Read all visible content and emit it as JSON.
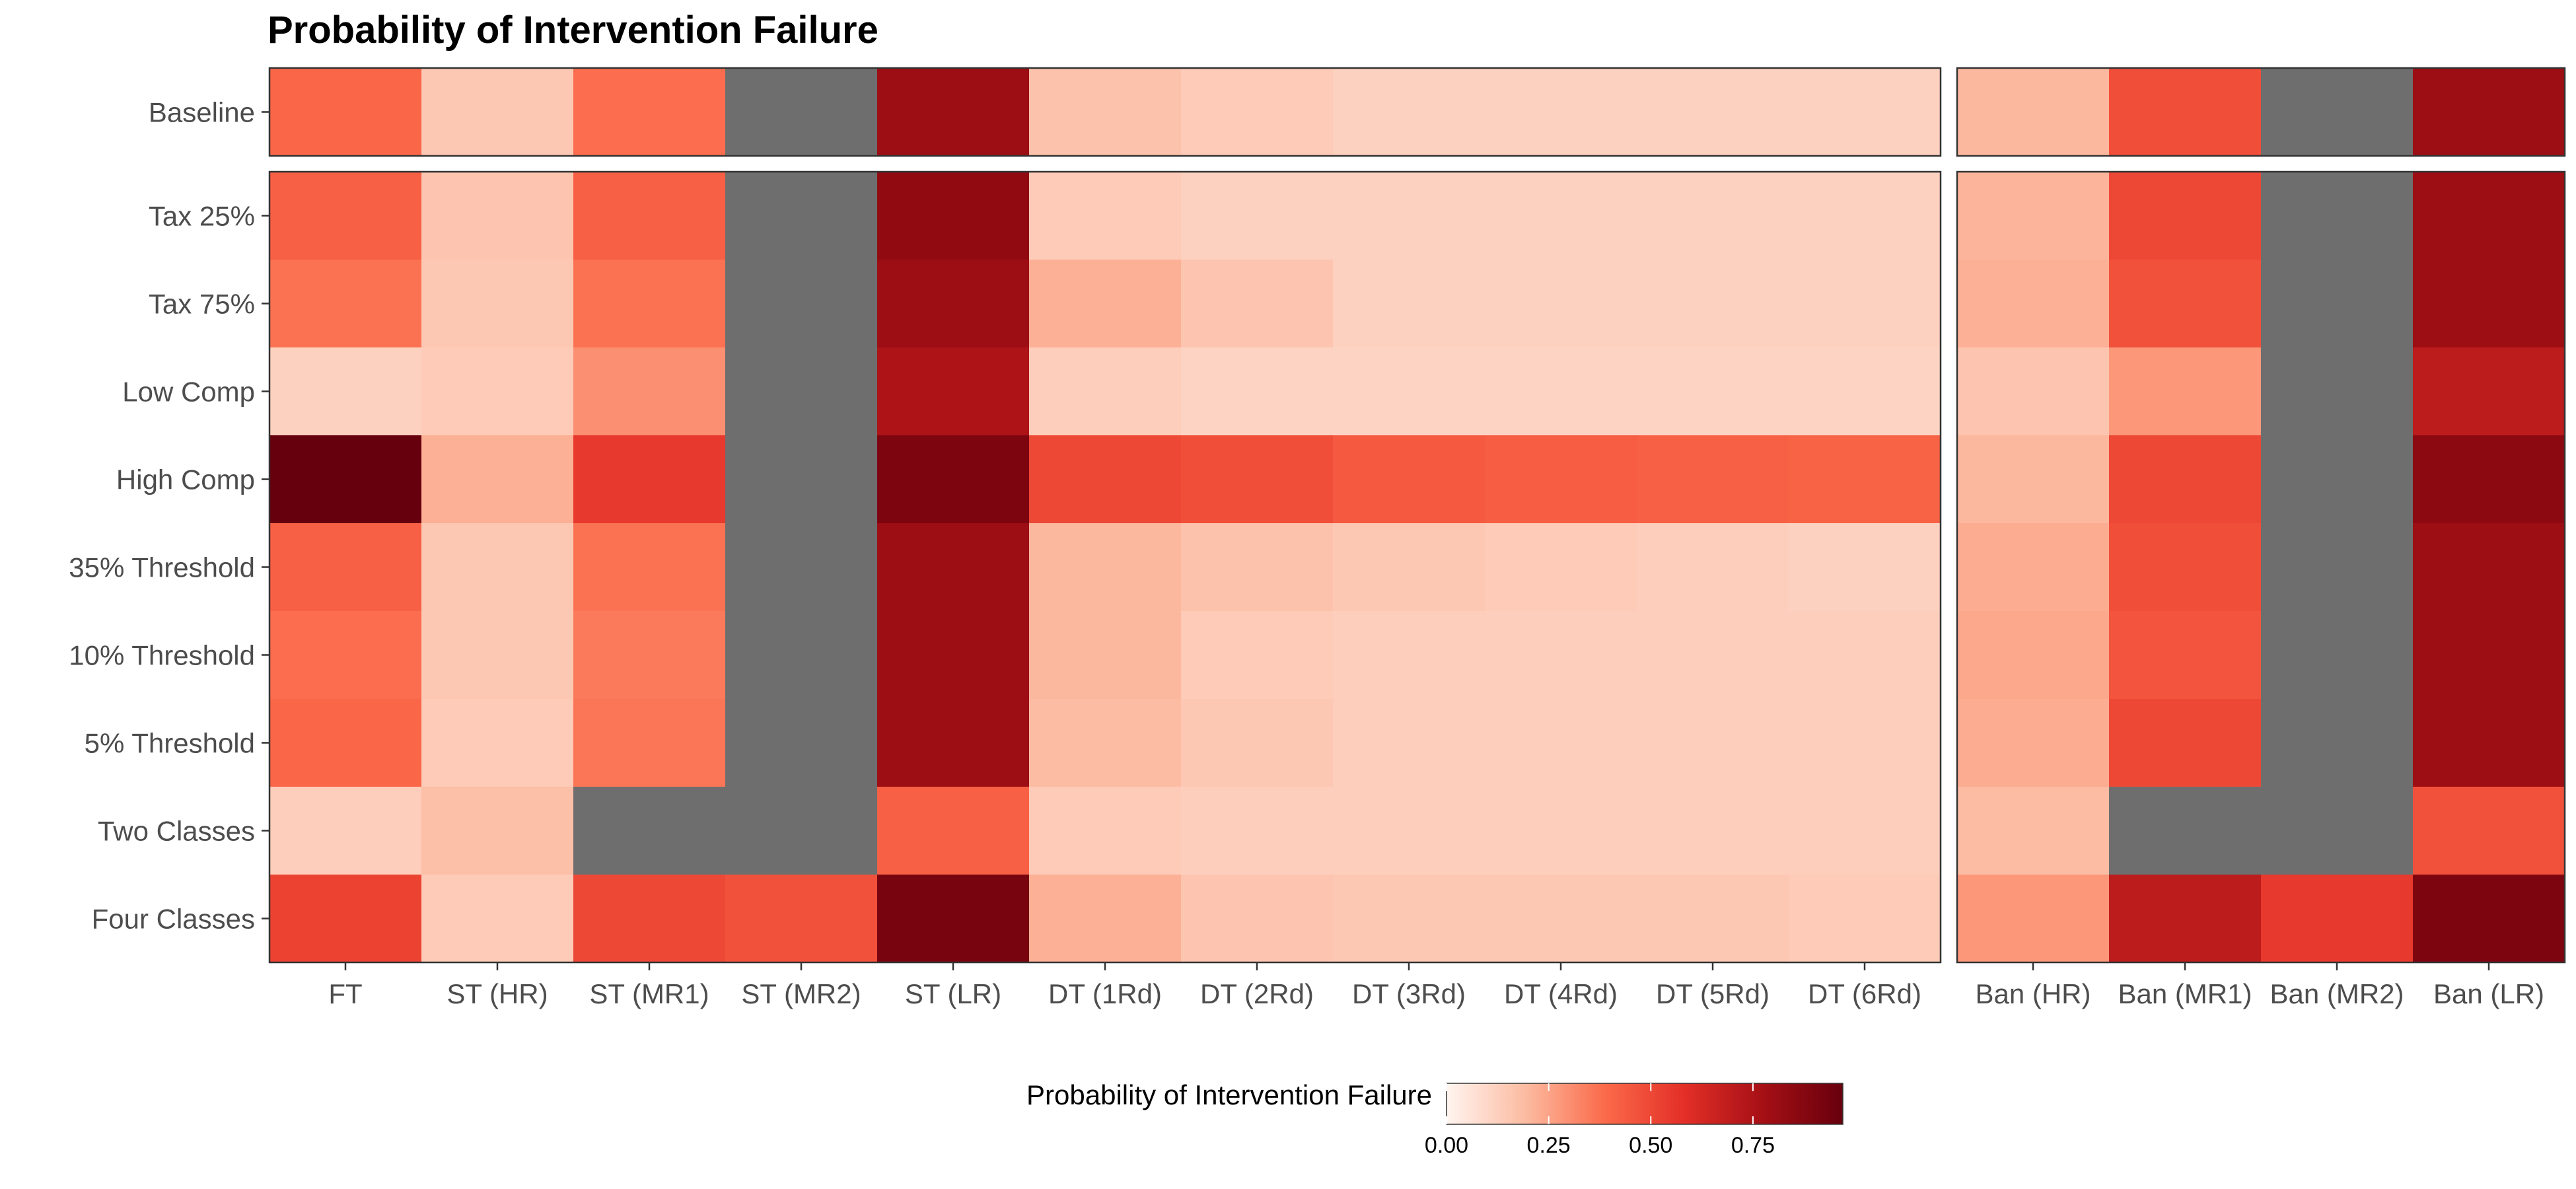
{
  "chart_data": {
    "type": "heatmap",
    "title": "Probability of Intervention Failure",
    "legend": {
      "title": "Probability of Intervention Failure",
      "position": "bottom",
      "ticks": [
        "0.00",
        "0.25",
        "0.50",
        "0.75"
      ],
      "range": [
        0,
        0.97
      ],
      "colors": [
        "#fff5f0",
        "#fcbba1",
        "#fb6a4a",
        "#e32f27",
        "#a50f15",
        "#67000d"
      ],
      "na_color": "#6e6e6e"
    },
    "columns_left": [
      "FT",
      "ST (HR)",
      "ST (MR1)",
      "ST (MR2)",
      "ST (LR)",
      "DT (1Rd)",
      "DT (2Rd)",
      "DT (3Rd)",
      "DT (4Rd)",
      "DT (5Rd)",
      "DT (6Rd)"
    ],
    "columns_right": [
      "Ban (HR)",
      "Ban (MR1)",
      "Ban (MR2)",
      "Ban (LR)"
    ],
    "rows_top": [
      "Baseline"
    ],
    "rows_bottom": [
      "Tax 25%",
      "Tax 75%",
      "Low Comp",
      "High Comp",
      "35% Threshold",
      "10% Threshold",
      "5% Threshold",
      "Two Classes",
      "Four Classes"
    ],
    "values": {
      "Baseline": [
        0.4,
        0.15,
        0.38,
        null,
        0.8,
        0.17,
        0.14,
        0.12,
        0.12,
        0.12,
        0.12,
        0.2,
        0.48,
        null,
        0.8
      ],
      "Tax 25%": [
        0.42,
        0.16,
        0.42,
        null,
        0.84,
        0.14,
        0.12,
        0.12,
        0.12,
        0.12,
        0.12,
        0.21,
        0.5,
        null,
        0.8
      ],
      "Tax 75%": [
        0.37,
        0.15,
        0.37,
        null,
        0.8,
        0.22,
        0.16,
        0.12,
        0.12,
        0.12,
        0.12,
        0.22,
        0.47,
        null,
        0.8
      ],
      "Low Comp": [
        0.12,
        0.14,
        0.3,
        null,
        0.75,
        0.13,
        0.11,
        0.11,
        0.11,
        0.11,
        0.11,
        0.16,
        0.28,
        null,
        0.7
      ],
      "High Comp": [
        0.97,
        0.22,
        0.55,
        null,
        0.9,
        0.5,
        0.48,
        0.44,
        0.43,
        0.42,
        0.41,
        0.2,
        0.5,
        null,
        0.85
      ],
      "35% Threshold": [
        0.42,
        0.15,
        0.37,
        null,
        0.8,
        0.2,
        0.17,
        0.15,
        0.14,
        0.13,
        0.12,
        0.23,
        0.48,
        null,
        0.8
      ],
      "10% Threshold": [
        0.38,
        0.15,
        0.35,
        null,
        0.8,
        0.2,
        0.14,
        0.13,
        0.13,
        0.13,
        0.13,
        0.24,
        0.46,
        null,
        0.8
      ],
      "5% Threshold": [
        0.4,
        0.14,
        0.36,
        null,
        0.8,
        0.19,
        0.15,
        0.13,
        0.13,
        0.13,
        0.13,
        0.23,
        0.5,
        null,
        0.8
      ],
      "Two Classes": [
        0.13,
        0.18,
        null,
        null,
        0.42,
        0.14,
        0.13,
        0.13,
        0.13,
        0.13,
        0.13,
        0.19,
        null,
        null,
        0.47
      ],
      "Four Classes": [
        0.52,
        0.14,
        0.5,
        0.47,
        0.92,
        0.22,
        0.16,
        0.15,
        0.15,
        0.15,
        0.14,
        0.28,
        0.7,
        0.55,
        0.9
      ]
    }
  }
}
